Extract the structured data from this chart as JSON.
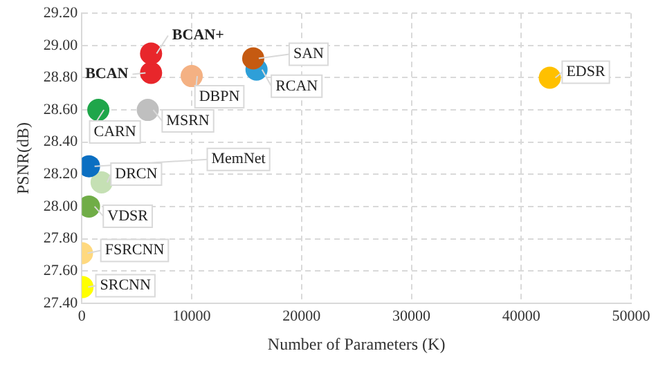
{
  "chart_data": {
    "type": "scatter",
    "xlabel": "Number of Parameters (K)",
    "ylabel": "PSNR(dB)",
    "xlim": [
      0,
      50000
    ],
    "xticks": [
      0,
      10000,
      20000,
      30000,
      40000,
      50000
    ],
    "ylim": [
      27.4,
      29.2
    ],
    "yticks": [
      {
        "value": 27.4,
        "label": "27.40"
      },
      {
        "value": 27.6,
        "label": "27.60"
      },
      {
        "value": 27.8,
        "label": "27.80"
      },
      {
        "value": 28.0,
        "label": "28.00"
      },
      {
        "value": 28.2,
        "label": "28.20"
      },
      {
        "value": 28.4,
        "label": "28.40"
      },
      {
        "value": 28.6,
        "label": "28.60"
      },
      {
        "value": 28.8,
        "label": "28.80"
      },
      {
        "value": 29.0,
        "label": "29.00"
      },
      {
        "value": 29.2,
        "label": "29.20"
      }
    ],
    "grid": true,
    "legend": false,
    "marker": "circle",
    "series": [
      {
        "name": "BCAN+",
        "color": "#e8262b",
        "x": [
          6300
        ],
        "values": [
          28.95
        ]
      },
      {
        "name": "BCAN",
        "color": "#e8262b",
        "x": [
          6300
        ],
        "values": [
          28.83
        ]
      },
      {
        "name": "DBPN",
        "color": "#f4b183",
        "x": [
          10000
        ],
        "values": [
          28.81
        ]
      },
      {
        "name": "SAN",
        "color": "#c55a11",
        "x": [
          15600
        ],
        "values": [
          28.92
        ]
      },
      {
        "name": "RCAN",
        "color": "#2e9fd8",
        "x": [
          15900
        ],
        "values": [
          28.85
        ]
      },
      {
        "name": "EDSR",
        "color": "#ffc000",
        "x": [
          42600
        ],
        "values": [
          28.8
        ]
      },
      {
        "name": "CARN",
        "color": "#1fa64a",
        "x": [
          1500
        ],
        "values": [
          28.6
        ]
      },
      {
        "name": "MSRN",
        "color": "#bfbfbf",
        "x": [
          6000
        ],
        "values": [
          28.6
        ]
      },
      {
        "name": "MemNet",
        "color": "#0b6fc2",
        "x": [
          650
        ],
        "values": [
          28.25
        ]
      },
      {
        "name": "DRCN",
        "color": "#c5e0b4",
        "x": [
          1800
        ],
        "values": [
          28.15
        ]
      },
      {
        "name": "VDSR",
        "color": "#70ad47",
        "x": [
          650
        ],
        "values": [
          28.0
        ]
      },
      {
        "name": "FSRCNN",
        "color": "#ffd97f",
        "x": [
          12
        ],
        "values": [
          27.71
        ]
      },
      {
        "name": "SRCNN",
        "color": "#ffff00",
        "x": [
          57
        ],
        "values": [
          27.5
        ]
      }
    ]
  }
}
